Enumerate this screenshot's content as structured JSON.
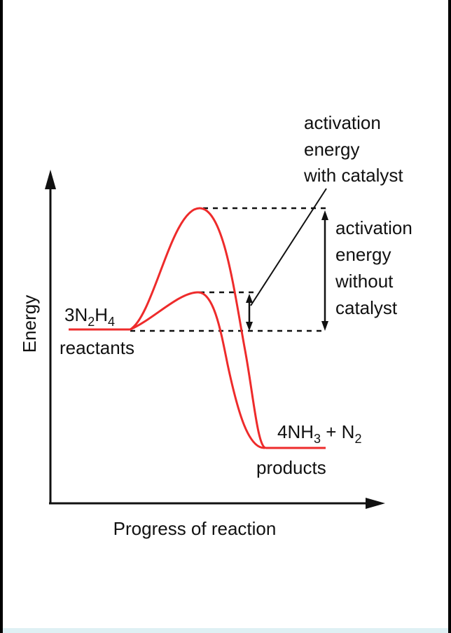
{
  "diagram": {
    "y_axis_label": "Energy",
    "x_axis_label": "Progress of reaction",
    "reactants": {
      "formula": {
        "coef": "3N",
        "sub1": "2",
        "mid": "H",
        "sub2": "4"
      },
      "label": "reactants"
    },
    "products": {
      "formula": {
        "coef": "4NH",
        "sub1": "3",
        "plus": " + N",
        "sub2": "2"
      },
      "label": "products"
    },
    "annotation_with_catalyst": [
      "activation",
      "energy",
      "with catalyst"
    ],
    "annotation_without_catalyst": [
      "activation",
      "energy",
      "without",
      "catalyst"
    ],
    "colors": {
      "curve": "#ee2b2b",
      "axis": "#111111",
      "frame": "#000000",
      "page": "#ffffff",
      "bottom_strip": "#dff0f4"
    }
  }
}
